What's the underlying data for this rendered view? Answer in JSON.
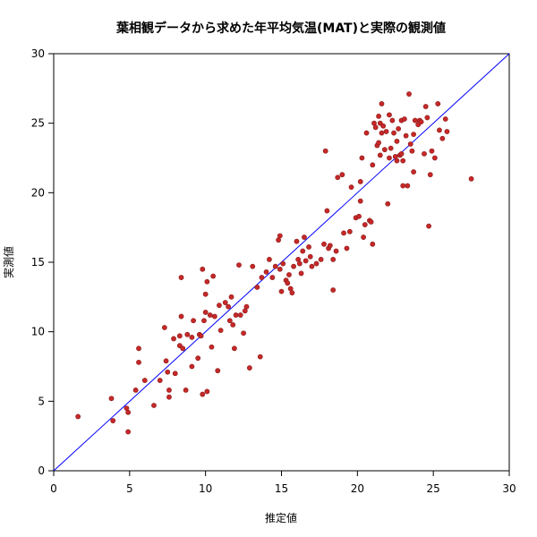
{
  "chart_data": {
    "type": "scatter",
    "title": "葉相観データから求めた年平均気温(MAT)と実際の観測値",
    "xlabel": "推定値",
    "ylabel": "実測値",
    "xlim": [
      0,
      30
    ],
    "ylim": [
      0,
      30
    ],
    "xticks": [
      0,
      5,
      10,
      15,
      20,
      25,
      30
    ],
    "yticks": [
      0,
      5,
      10,
      15,
      20,
      25,
      30
    ],
    "grid": false,
    "point_color": "#c62828",
    "reference_line": {
      "from": [
        0,
        0
      ],
      "to": [
        30,
        30
      ],
      "color": "#0000ff"
    },
    "points": [
      [
        1.6,
        3.9
      ],
      [
        3.8,
        5.2
      ],
      [
        3.9,
        3.6
      ],
      [
        4.8,
        4.5
      ],
      [
        4.9,
        4.2
      ],
      [
        4.9,
        2.8
      ],
      [
        5.4,
        5.8
      ],
      [
        5.6,
        7.8
      ],
      [
        5.6,
        8.8
      ],
      [
        6.0,
        6.5
      ],
      [
        6.6,
        4.7
      ],
      [
        7.0,
        6.5
      ],
      [
        7.3,
        10.3
      ],
      [
        7.4,
        7.9
      ],
      [
        7.5,
        7.1
      ],
      [
        7.6,
        5.8
      ],
      [
        7.6,
        5.3
      ],
      [
        7.9,
        9.5
      ],
      [
        8.0,
        7.0
      ],
      [
        8.3,
        9.7
      ],
      [
        8.3,
        9.0
      ],
      [
        8.4,
        13.9
      ],
      [
        8.4,
        11.1
      ],
      [
        8.5,
        8.8
      ],
      [
        8.7,
        5.8
      ],
      [
        8.8,
        9.8
      ],
      [
        9.1,
        7.5
      ],
      [
        9.1,
        9.6
      ],
      [
        9.2,
        10.8
      ],
      [
        9.5,
        8.1
      ],
      [
        9.6,
        9.8
      ],
      [
        9.7,
        9.7
      ],
      [
        9.8,
        5.5
      ],
      [
        9.8,
        14.5
      ],
      [
        9.9,
        10.8
      ],
      [
        10.0,
        12.7
      ],
      [
        10.0,
        11.4
      ],
      [
        10.1,
        5.7
      ],
      [
        10.1,
        13.6
      ],
      [
        10.3,
        11.2
      ],
      [
        10.4,
        8.9
      ],
      [
        10.5,
        14.0
      ],
      [
        10.6,
        11.1
      ],
      [
        10.8,
        7.2
      ],
      [
        10.9,
        11.9
      ],
      [
        11.0,
        10.1
      ],
      [
        11.3,
        12.1
      ],
      [
        11.5,
        11.8
      ],
      [
        11.6,
        10.8
      ],
      [
        11.7,
        12.5
      ],
      [
        11.8,
        10.5
      ],
      [
        11.9,
        8.8
      ],
      [
        12.0,
        11.2
      ],
      [
        12.2,
        14.8
      ],
      [
        12.3,
        11.2
      ],
      [
        12.5,
        9.9
      ],
      [
        12.6,
        11.5
      ],
      [
        12.7,
        11.8
      ],
      [
        12.9,
        7.4
      ],
      [
        13.1,
        14.7
      ],
      [
        13.4,
        13.2
      ],
      [
        13.6,
        8.2
      ],
      [
        13.7,
        13.9
      ],
      [
        14.0,
        14.3
      ],
      [
        14.2,
        15.2
      ],
      [
        14.4,
        13.9
      ],
      [
        14.6,
        14.7
      ],
      [
        14.8,
        16.6
      ],
      [
        14.9,
        16.9
      ],
      [
        14.9,
        14.5
      ],
      [
        15.0,
        12.9
      ],
      [
        15.1,
        14.9
      ],
      [
        15.3,
        13.7
      ],
      [
        15.4,
        13.5
      ],
      [
        15.5,
        14.1
      ],
      [
        15.6,
        13.1
      ],
      [
        15.7,
        12.8
      ],
      [
        15.8,
        14.7
      ],
      [
        16.0,
        16.5
      ],
      [
        16.1,
        15.2
      ],
      [
        16.2,
        14.9
      ],
      [
        16.3,
        14.2
      ],
      [
        16.4,
        15.8
      ],
      [
        16.5,
        16.8
      ],
      [
        16.6,
        15.1
      ],
      [
        16.8,
        16.1
      ],
      [
        16.9,
        15.4
      ],
      [
        17.0,
        14.7
      ],
      [
        17.3,
        14.9
      ],
      [
        17.6,
        15.2
      ],
      [
        17.8,
        16.3
      ],
      [
        17.9,
        23.0
      ],
      [
        18.0,
        18.7
      ],
      [
        18.1,
        16.0
      ],
      [
        18.2,
        16.2
      ],
      [
        18.4,
        15.2
      ],
      [
        18.4,
        13.0
      ],
      [
        18.6,
        15.8
      ],
      [
        18.7,
        21.1
      ],
      [
        19.0,
        21.3
      ],
      [
        19.1,
        17.1
      ],
      [
        19.3,
        16.0
      ],
      [
        19.5,
        17.2
      ],
      [
        19.6,
        20.4
      ],
      [
        19.9,
        18.2
      ],
      [
        20.1,
        18.3
      ],
      [
        20.2,
        20.8
      ],
      [
        20.2,
        19.4
      ],
      [
        20.3,
        22.5
      ],
      [
        20.4,
        16.8
      ],
      [
        20.5,
        17.7
      ],
      [
        20.6,
        24.3
      ],
      [
        20.8,
        18.0
      ],
      [
        20.9,
        17.9
      ],
      [
        21.0,
        22.0
      ],
      [
        21.0,
        16.3
      ],
      [
        21.1,
        25.0
      ],
      [
        21.2,
        24.7
      ],
      [
        21.3,
        23.4
      ],
      [
        21.4,
        25.5
      ],
      [
        21.4,
        23.6
      ],
      [
        21.5,
        25.0
      ],
      [
        21.6,
        26.4
      ],
      [
        21.7,
        24.8
      ],
      [
        21.8,
        23.1
      ],
      [
        21.9,
        24.4
      ],
      [
        22.0,
        19.2
      ],
      [
        22.1,
        22.5
      ],
      [
        22.1,
        25.6
      ],
      [
        22.2,
        23.2
      ],
      [
        22.3,
        25.2
      ],
      [
        22.4,
        24.3
      ],
      [
        22.5,
        22.6
      ],
      [
        22.6,
        23.7
      ],
      [
        22.7,
        24.6
      ],
      [
        22.8,
        22.7
      ],
      [
        22.9,
        25.2
      ],
      [
        23.0,
        20.5
      ],
      [
        23.0,
        22.3
      ],
      [
        23.1,
        25.3
      ],
      [
        23.2,
        24.1
      ],
      [
        23.3,
        20.5
      ],
      [
        23.4,
        27.1
      ],
      [
        23.5,
        23.5
      ],
      [
        23.6,
        23.0
      ],
      [
        23.7,
        21.5
      ],
      [
        23.8,
        25.2
      ],
      [
        24.0,
        24.9
      ],
      [
        24.1,
        25.2
      ],
      [
        24.2,
        25.1
      ],
      [
        24.4,
        22.8
      ],
      [
        24.5,
        26.2
      ],
      [
        24.6,
        25.4
      ],
      [
        24.7,
        17.6
      ],
      [
        24.8,
        21.3
      ],
      [
        24.9,
        23.0
      ],
      [
        25.1,
        22.5
      ],
      [
        25.3,
        26.4
      ],
      [
        25.4,
        24.5
      ],
      [
        25.6,
        23.9
      ],
      [
        25.8,
        25.3
      ],
      [
        25.9,
        24.4
      ],
      [
        27.5,
        21.0
      ],
      [
        21.6,
        24.3
      ],
      [
        22.6,
        22.3
      ],
      [
        22.9,
        22.8
      ],
      [
        21.5,
        22.7
      ],
      [
        23.7,
        24.2
      ]
    ]
  }
}
